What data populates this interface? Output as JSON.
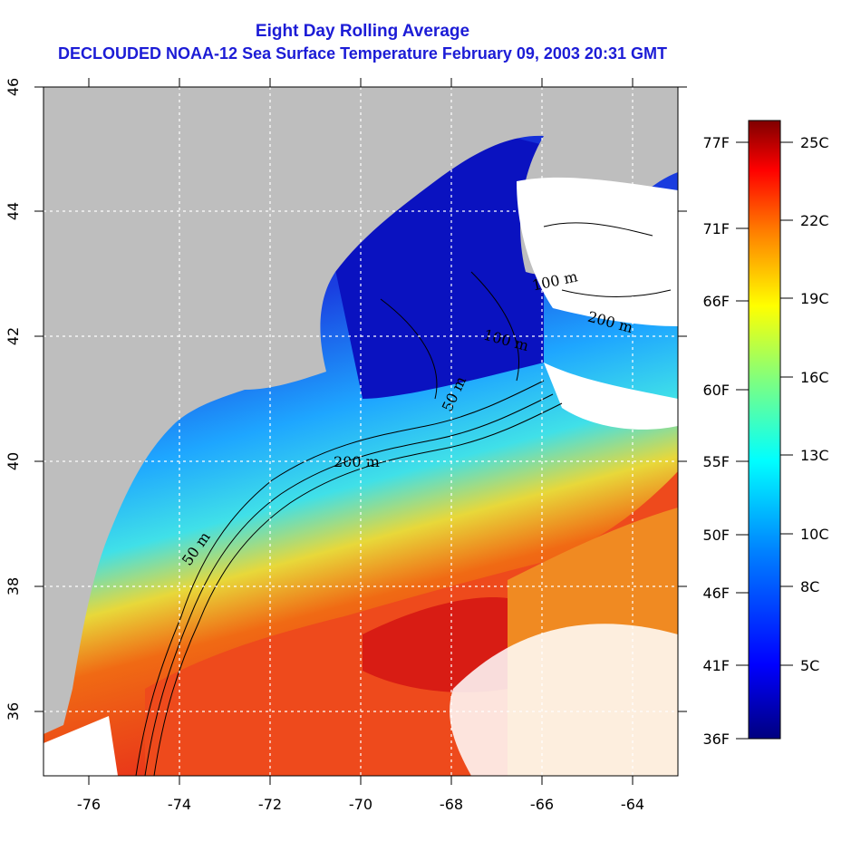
{
  "title_line1": "Eight Day Rolling Average",
  "title_line2": "DECLOUDED NOAA-12 Sea Surface Temperature February 09, 2003 20:31 GMT",
  "colors": {
    "title": "#1c1cd6",
    "land": "#bebebe",
    "cloud": "#ffffff",
    "warm": "#e8301a",
    "cold": "#0a14c8"
  },
  "longitude_ticks": [
    "-76",
    "-74",
    "-72",
    "-70",
    "-68",
    "-66",
    "-64"
  ],
  "latitude_ticks": [
    "46",
    "44",
    "42",
    "40",
    "38",
    "36"
  ],
  "colorbar": {
    "fahrenheit": [
      "77F",
      "71F",
      "66F",
      "60F",
      "55F",
      "50F",
      "46F",
      "41F",
      "36F"
    ],
    "celsius": [
      "25C",
      "22C",
      "19C",
      "16C",
      "13C",
      "10C",
      "8C",
      "5C"
    ]
  },
  "contours": [
    "50 m",
    "100 m",
    "200 m",
    "50 m",
    "100 m",
    "200 m"
  ]
}
